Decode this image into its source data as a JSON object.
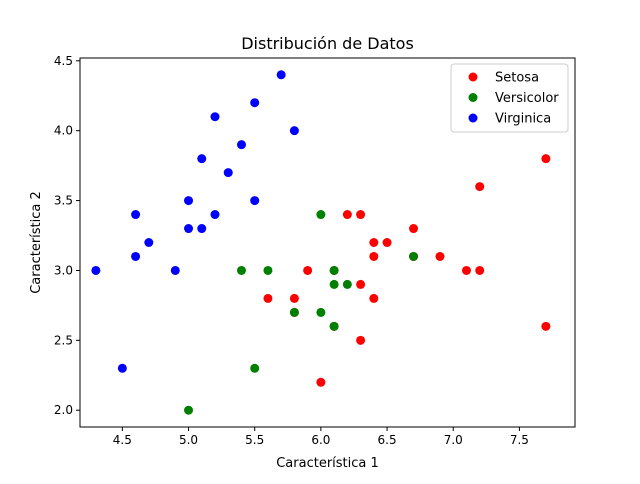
{
  "chart_data": {
    "type": "scatter",
    "title": "Distribución de Datos",
    "xlabel": "Característica 1",
    "ylabel": "Característica 2",
    "xlim": [
      4.18,
      7.92
    ],
    "ylim": [
      1.88,
      4.52
    ],
    "xticks": [
      4.5,
      5.0,
      5.5,
      6.0,
      6.5,
      7.0,
      7.5
    ],
    "yticks": [
      2.0,
      2.5,
      3.0,
      3.5,
      4.0,
      4.5
    ],
    "xtick_labels": [
      "4.5",
      "5.0",
      "5.5",
      "6.0",
      "6.5",
      "7.0",
      "7.5"
    ],
    "ytick_labels": [
      "2.0",
      "2.5",
      "3.0",
      "3.5",
      "4.0",
      "4.5"
    ],
    "grid": false,
    "legend_position": "top-right",
    "series": [
      {
        "name": "Setosa",
        "color": "#ff0000",
        "points": [
          [
            5.6,
            2.8
          ],
          [
            5.8,
            2.8
          ],
          [
            5.8,
            2.7
          ],
          [
            5.9,
            3.0
          ],
          [
            6.0,
            2.2
          ],
          [
            6.1,
            2.6
          ],
          [
            6.1,
            3.0
          ],
          [
            6.2,
            3.4
          ],
          [
            6.3,
            3.4
          ],
          [
            6.3,
            2.9
          ],
          [
            6.3,
            2.5
          ],
          [
            6.4,
            3.2
          ],
          [
            6.4,
            3.1
          ],
          [
            6.4,
            2.8
          ],
          [
            6.5,
            3.2
          ],
          [
            6.7,
            3.3
          ],
          [
            6.7,
            3.1
          ],
          [
            6.9,
            3.1
          ],
          [
            7.1,
            3.0
          ],
          [
            7.2,
            3.6
          ],
          [
            7.2,
            3.0
          ],
          [
            7.7,
            3.8
          ],
          [
            7.7,
            2.6
          ]
        ]
      },
      {
        "name": "Versicolor",
        "color": "#008000",
        "points": [
          [
            5.0,
            2.0
          ],
          [
            5.4,
            3.0
          ],
          [
            5.5,
            2.3
          ],
          [
            5.6,
            3.0
          ],
          [
            5.8,
            2.7
          ],
          [
            6.0,
            3.4
          ],
          [
            6.0,
            2.7
          ],
          [
            6.1,
            3.0
          ],
          [
            6.1,
            2.9
          ],
          [
            6.1,
            2.6
          ],
          [
            6.2,
            2.9
          ],
          [
            6.7,
            3.1
          ]
        ]
      },
      {
        "name": "Virginica",
        "color": "#0000ff",
        "points": [
          [
            4.3,
            3.0
          ],
          [
            4.5,
            2.3
          ],
          [
            4.6,
            3.4
          ],
          [
            4.6,
            3.1
          ],
          [
            4.7,
            3.2
          ],
          [
            4.9,
            3.0
          ],
          [
            5.0,
            3.5
          ],
          [
            5.0,
            3.3
          ],
          [
            5.1,
            3.8
          ],
          [
            5.1,
            3.3
          ],
          [
            5.2,
            4.1
          ],
          [
            5.2,
            3.4
          ],
          [
            5.3,
            3.7
          ],
          [
            5.4,
            3.9
          ],
          [
            5.5,
            4.2
          ],
          [
            5.5,
            3.5
          ],
          [
            5.7,
            4.4
          ],
          [
            5.8,
            4.0
          ]
        ]
      }
    ]
  }
}
